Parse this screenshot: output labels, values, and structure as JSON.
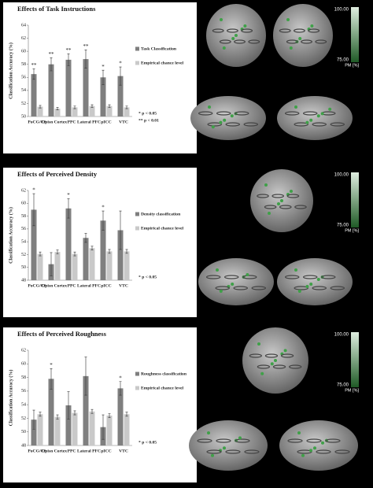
{
  "chart_data": [
    {
      "type": "bar",
      "panel": "A",
      "title": "Effects of Task Instructions",
      "ylabel": "Classification Accuracy (%)",
      "categories": [
        "PoCG/CS",
        "Opisn Cortex",
        "PPC",
        "Lateral PFC",
        "pICC",
        "VTC"
      ],
      "series": [
        {
          "name": "Task Classification",
          "color": "#7f7f7f",
          "values": [
            56.5,
            58,
            58.7,
            58.8,
            56,
            56.2
          ],
          "errors": [
            0.8,
            1,
            0.9,
            1.4,
            1.1,
            1.4
          ]
        },
        {
          "name": "Empirical chance level",
          "color": "#c9c9c9",
          "values": [
            51.5,
            51.2,
            51.4,
            51.6,
            51.6,
            51.4
          ],
          "errors": [
            0.2,
            0.2,
            0.2,
            0.2,
            0.2,
            0.2
          ]
        }
      ],
      "annotations": [
        "**",
        "**",
        "**",
        "**",
        "*",
        "*"
      ],
      "notes": [
        "* p < 0.05",
        "** p < 0.01"
      ],
      "ylim": [
        50,
        64
      ],
      "yticks": [
        50,
        52,
        54,
        56,
        58,
        60,
        62,
        64
      ],
      "colorbar": {
        "max": "100.00",
        "min": "75.00",
        "unit": "PM [%]"
      }
    },
    {
      "type": "bar",
      "panel": "B",
      "title": "Effects of Perceived Density",
      "ylabel": "Classification Accuracy (%)",
      "categories": [
        "PoCG/CS",
        "Opisn Cortex",
        "PPC",
        "Lateral PFC",
        "pICC",
        "VTC"
      ],
      "series": [
        {
          "name": "Density classification",
          "color": "#7f7f7f",
          "values": [
            59,
            50.5,
            59.2,
            54.6,
            57.3,
            55.8
          ],
          "errors": [
            2.5,
            1.8,
            1.5,
            0.7,
            1.5,
            3
          ]
        },
        {
          "name": "Empirical chance level",
          "color": "#c9c9c9",
          "values": [
            52.1,
            52.4,
            52.1,
            53,
            52.5,
            52.5
          ],
          "errors": [
            0.3,
            0.3,
            0.3,
            0.3,
            0.3,
            0.3
          ]
        }
      ],
      "annotations": [
        "*",
        null,
        "*",
        null,
        "*",
        null
      ],
      "notes": [
        "* p < 0.05"
      ],
      "ylim": [
        48,
        62
      ],
      "yticks": [
        48,
        50,
        52,
        54,
        56,
        58,
        60,
        62
      ],
      "colorbar": {
        "max": "100.00",
        "min": "75.00",
        "unit": "PM [%]"
      }
    },
    {
      "type": "bar",
      "panel": "C",
      "title": "Effects of Perceived Roughness",
      "ylabel": "Classification Accuracy (%)",
      "categories": [
        "PoCG/CS",
        "Opisn Cortex",
        "PPC",
        "Lateral PFC",
        "pICC",
        "VTC"
      ],
      "series": [
        {
          "name": "Roughness classification",
          "color": "#7f7f7f",
          "values": [
            51.8,
            57.8,
            53.9,
            58.2,
            50.7,
            56.4
          ],
          "errors": [
            1.4,
            1.5,
            2,
            2.8,
            1.8,
            1
          ]
        },
        {
          "name": "Empirical chance level",
          "color": "#c9c9c9",
          "values": [
            52.6,
            52.2,
            52.8,
            53,
            52.4,
            52.6
          ],
          "errors": [
            0.3,
            0.3,
            0.3,
            0.3,
            0.3,
            0.3
          ]
        }
      ],
      "annotations": [
        null,
        "*",
        null,
        null,
        null,
        "*"
      ],
      "notes": [
        "* p < 0.05"
      ],
      "ylim": [
        48,
        62
      ],
      "yticks": [
        48,
        50,
        52,
        54,
        56,
        58,
        60,
        62
      ],
      "colorbar": {
        "max": "100.00",
        "min": "75.00",
        "unit": "PM [%]"
      }
    }
  ]
}
